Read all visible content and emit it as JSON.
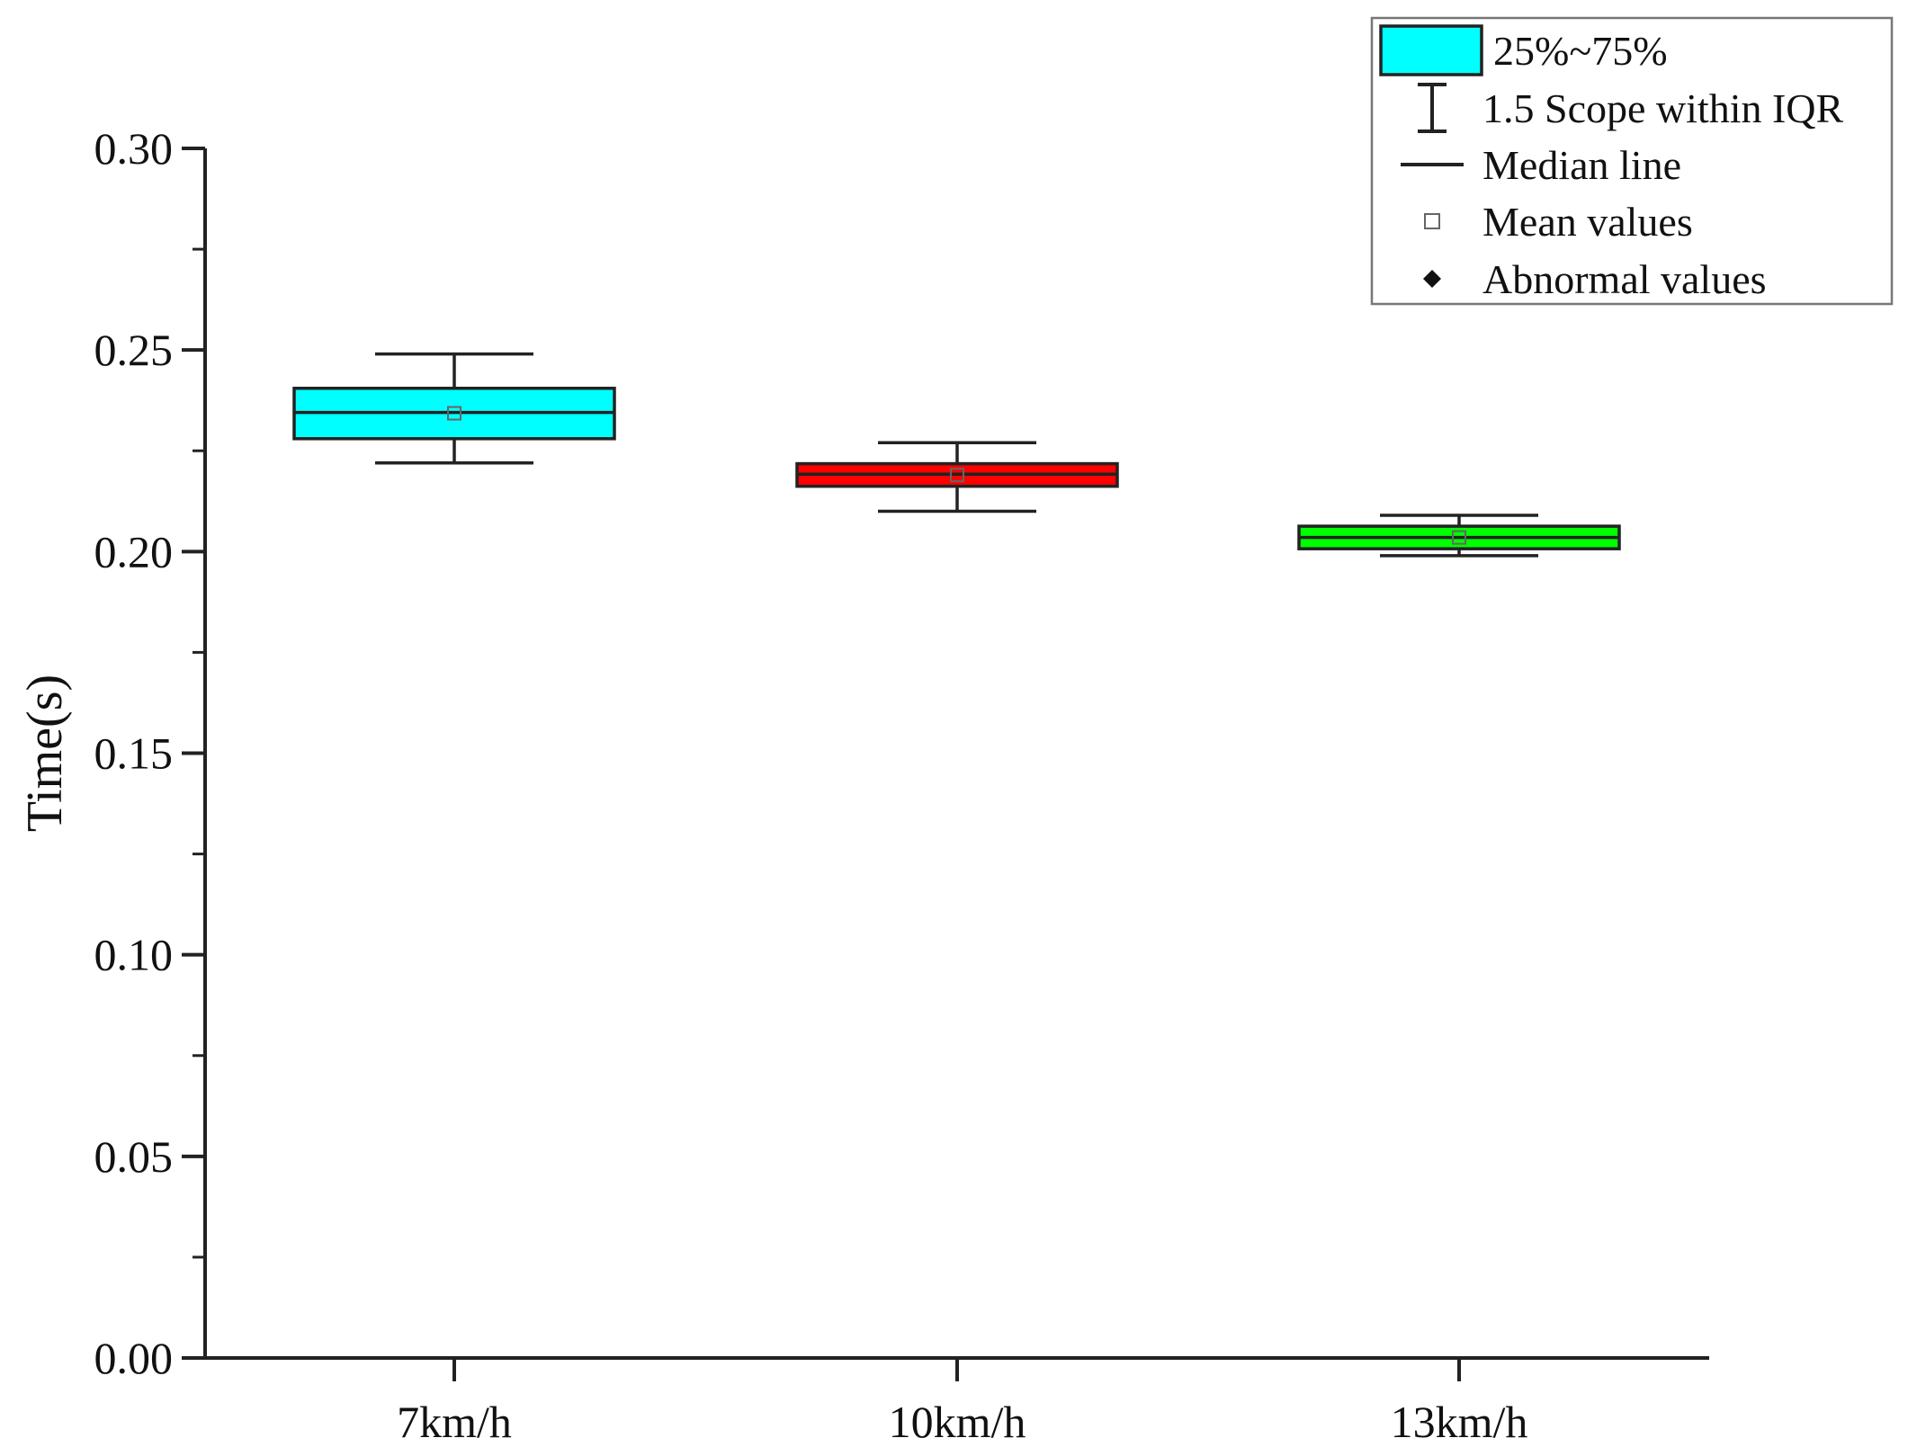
{
  "chart_data": {
    "type": "box",
    "categories": [
      "7km/h",
      "10km/h",
      "13km/h"
    ],
    "series": [
      {
        "category": "7km/h",
        "whisker_low": 0.222,
        "q1": 0.228,
        "median": 0.2345,
        "mean": 0.2343,
        "q3": 0.2405,
        "whisker_high": 0.249,
        "color": "#00ffff"
      },
      {
        "category": "10km/h",
        "whisker_low": 0.21,
        "q1": 0.2162,
        "median": 0.2192,
        "mean": 0.219,
        "q3": 0.2218,
        "whisker_high": 0.227,
        "color": "#ff0000"
      },
      {
        "category": "13km/h",
        "whisker_low": 0.199,
        "q1": 0.2007,
        "median": 0.2035,
        "mean": 0.2035,
        "q3": 0.2063,
        "whisker_high": 0.209,
        "color": "#00ff00"
      }
    ],
    "xlabel": "",
    "ylabel": "Time(s)",
    "ylim": [
      0,
      0.3
    ],
    "yticks": [
      "0.00",
      "0.05",
      "0.10",
      "0.15",
      "0.20",
      "0.25",
      "0.30"
    ],
    "ytick_values": [
      0,
      0.05,
      0.1,
      0.15,
      0.2,
      0.25,
      0.3
    ],
    "grid": false,
    "legend": {
      "position": "top-right",
      "entries": [
        {
          "label": "25%~75%",
          "symbol": "box",
          "color": "#00ffff"
        },
        {
          "label": "1.5 Scope within IQR",
          "symbol": "whisker"
        },
        {
          "label": "Median line",
          "symbol": "line"
        },
        {
          "label": "Mean values",
          "symbol": "open-square"
        },
        {
          "label": "Abnormal values",
          "symbol": "diamond"
        }
      ]
    }
  }
}
